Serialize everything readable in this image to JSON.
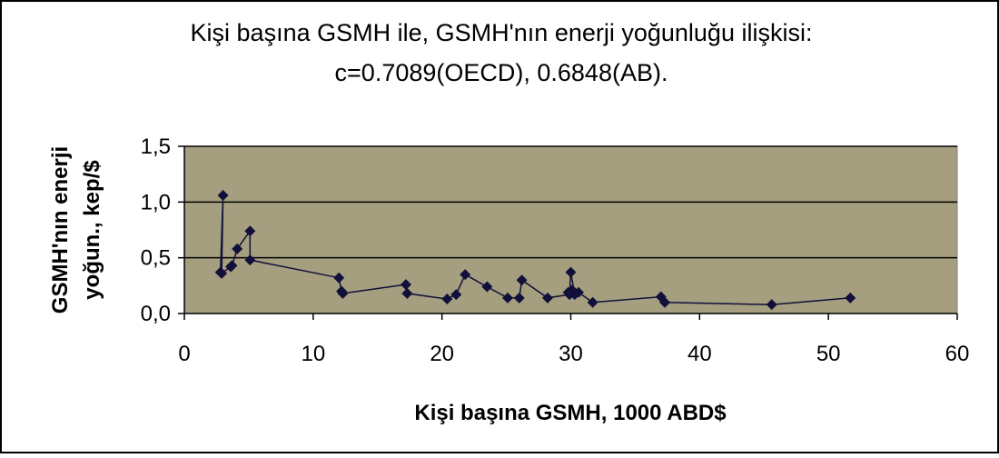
{
  "chart_data": {
    "type": "line",
    "title": "Kişi başına GSMH ile, GSMH'nın enerji yoğunluğu ilişkisi:",
    "subtitle": "c=0.7089(OECD), 0.6848(AB).",
    "xlabel": "Kişi başına GSMH, 1000 ABD$",
    "ylabel_lines": [
      "GSMH'nın enerji",
      "yoğun., kep/$"
    ],
    "xlim": [
      0,
      60
    ],
    "ylim": [
      0,
      1.5
    ],
    "x_ticks": [
      0,
      10,
      20,
      30,
      40,
      50,
      60
    ],
    "x_tick_labels": [
      "0",
      "10",
      "20",
      "30",
      "40",
      "50",
      "60"
    ],
    "y_ticks": [
      0,
      0.5,
      1.0,
      1.5
    ],
    "y_tick_labels": [
      "0,0",
      "0,5",
      "1,0",
      "1,5"
    ],
    "grid": "horizontal",
    "legend": "none",
    "plot_background": "#a59e7f",
    "marker_color": "#10103a",
    "series": [
      {
        "marker": "diamond",
        "x": [
          2.8,
          3.0,
          2.9,
          3.6,
          3.7,
          4.1,
          5.1,
          5.1,
          12.0,
          12.2,
          12.3,
          17.2,
          17.3,
          20.4,
          21.1,
          21.8,
          23.5,
          25.1,
          26.0,
          26.2,
          28.2,
          29.9,
          30.0,
          30.3,
          30.1,
          29.8,
          30.6,
          31.7,
          37.0,
          37.3,
          45.6,
          51.7
        ],
        "y": [
          0.37,
          1.06,
          0.36,
          0.42,
          0.43,
          0.58,
          0.74,
          0.48,
          0.32,
          0.2,
          0.18,
          0.26,
          0.18,
          0.13,
          0.17,
          0.35,
          0.24,
          0.14,
          0.14,
          0.3,
          0.14,
          0.17,
          0.37,
          0.17,
          0.21,
          0.19,
          0.19,
          0.1,
          0.15,
          0.1,
          0.08,
          0.14
        ]
      }
    ]
  }
}
